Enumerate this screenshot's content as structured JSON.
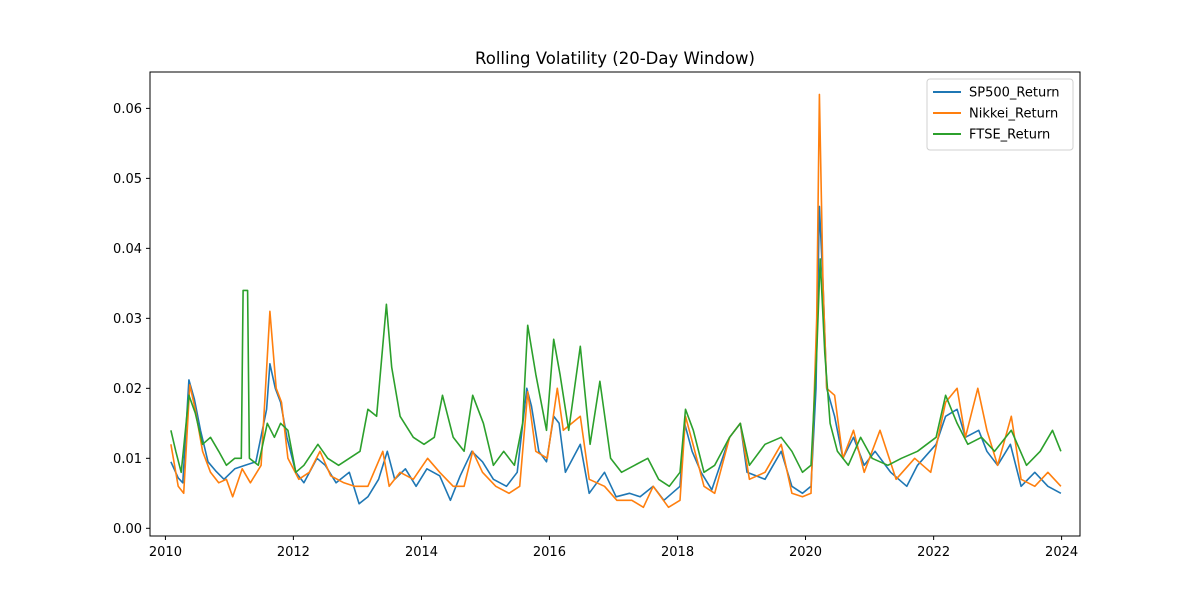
{
  "chart_data": {
    "type": "line",
    "title": "Rolling Volatility (20-Day Window)",
    "xlabel": "",
    "ylabel": "",
    "xlim": [
      "2009-10-05",
      "2024-04-15"
    ],
    "ylim": [
      -0.0011,
      0.0652
    ],
    "x_ticks": [
      "2010",
      "2012",
      "2014",
      "2016",
      "2018",
      "2020",
      "2022",
      "2024"
    ],
    "y_ticks": [
      "0.00",
      "0.01",
      "0.02",
      "0.03",
      "0.04",
      "0.05",
      "0.06"
    ],
    "grid": false,
    "legend_position": "top-right",
    "series": [
      {
        "name": "SP500_Return",
        "color": "#1f77b4",
        "points": [
          [
            "2010-02-01",
            0.0095
          ],
          [
            "2010-03-15",
            0.0072
          ],
          [
            "2010-04-10",
            0.0065
          ],
          [
            "2010-05-15",
            0.0212
          ],
          [
            "2010-06-15",
            0.0185
          ],
          [
            "2010-07-20",
            0.014
          ],
          [
            "2010-09-01",
            0.0095
          ],
          [
            "2010-10-15",
            0.0082
          ],
          [
            "2010-12-01",
            0.007
          ],
          [
            "2011-02-01",
            0.0085
          ],
          [
            "2011-04-01",
            0.009
          ],
          [
            "2011-06-01",
            0.0095
          ],
          [
            "2011-08-01",
            0.017
          ],
          [
            "2011-08-20",
            0.0235
          ],
          [
            "2011-09-20",
            0.02
          ],
          [
            "2011-10-20",
            0.018
          ],
          [
            "2011-11-25",
            0.013
          ],
          [
            "2012-01-15",
            0.008
          ],
          [
            "2012-03-01",
            0.0065
          ],
          [
            "2012-05-15",
            0.01
          ],
          [
            "2012-07-01",
            0.009
          ],
          [
            "2012-09-01",
            0.0065
          ],
          [
            "2012-11-15",
            0.008
          ],
          [
            "2013-01-10",
            0.0035
          ],
          [
            "2013-03-01",
            0.0045
          ],
          [
            "2013-05-01",
            0.007
          ],
          [
            "2013-06-20",
            0.011
          ],
          [
            "2013-08-01",
            0.007
          ],
          [
            "2013-10-01",
            0.0085
          ],
          [
            "2013-12-01",
            0.006
          ],
          [
            "2014-02-01",
            0.0085
          ],
          [
            "2014-04-15",
            0.0075
          ],
          [
            "2014-06-15",
            0.004
          ],
          [
            "2014-08-10",
            0.0075
          ],
          [
            "2014-10-15",
            0.011
          ],
          [
            "2014-12-15",
            0.0095
          ],
          [
            "2015-02-15",
            0.007
          ],
          [
            "2015-05-01",
            0.006
          ],
          [
            "2015-07-01",
            0.008
          ],
          [
            "2015-08-25",
            0.02
          ],
          [
            "2015-09-20",
            0.0175
          ],
          [
            "2015-11-01",
            0.011
          ],
          [
            "2015-12-15",
            0.0095
          ],
          [
            "2016-01-25",
            0.016
          ],
          [
            "2016-02-25",
            0.015
          ],
          [
            "2016-04-01",
            0.008
          ],
          [
            "2016-06-25",
            0.012
          ],
          [
            "2016-08-15",
            0.005
          ],
          [
            "2016-11-10",
            0.008
          ],
          [
            "2017-01-15",
            0.0045
          ],
          [
            "2017-04-01",
            0.005
          ],
          [
            "2017-06-01",
            0.0045
          ],
          [
            "2017-08-15",
            0.006
          ],
          [
            "2017-10-15",
            0.004
          ],
          [
            "2018-01-15",
            0.006
          ],
          [
            "2018-02-10",
            0.015
          ],
          [
            "2018-03-25",
            0.011
          ],
          [
            "2018-05-15",
            0.008
          ],
          [
            "2018-07-15",
            0.0055
          ],
          [
            "2018-10-25",
            0.013
          ],
          [
            "2018-12-25",
            0.015
          ],
          [
            "2019-02-01",
            0.008
          ],
          [
            "2019-05-15",
            0.007
          ],
          [
            "2019-08-15",
            0.011
          ],
          [
            "2019-10-15",
            0.006
          ],
          [
            "2019-12-15",
            0.005
          ],
          [
            "2020-02-01",
            0.006
          ],
          [
            "2020-03-01",
            0.02
          ],
          [
            "2020-03-20",
            0.046
          ],
          [
            "2020-04-10",
            0.035
          ],
          [
            "2020-05-01",
            0.02
          ],
          [
            "2020-06-15",
            0.016
          ],
          [
            "2020-08-01",
            0.01
          ],
          [
            "2020-10-01",
            0.013
          ],
          [
            "2020-12-01",
            0.009
          ],
          [
            "2021-02-01",
            0.011
          ],
          [
            "2021-05-01",
            0.008
          ],
          [
            "2021-08-01",
            0.006
          ],
          [
            "2021-10-01",
            0.009
          ],
          [
            "2022-01-15",
            0.012
          ],
          [
            "2022-03-10",
            0.016
          ],
          [
            "2022-05-15",
            0.017
          ],
          [
            "2022-07-01",
            0.013
          ],
          [
            "2022-09-15",
            0.014
          ],
          [
            "2022-11-01",
            0.011
          ],
          [
            "2023-01-01",
            0.009
          ],
          [
            "2023-03-15",
            0.012
          ],
          [
            "2023-05-15",
            0.006
          ],
          [
            "2023-08-01",
            0.008
          ],
          [
            "2023-10-15",
            0.006
          ],
          [
            "2023-12-28",
            0.005
          ]
        ]
      },
      {
        "name": "Nikkei_Return",
        "color": "#ff7f0e",
        "points": [
          [
            "2010-02-01",
            0.012
          ],
          [
            "2010-03-15",
            0.006
          ],
          [
            "2010-04-15",
            0.005
          ],
          [
            "2010-05-20",
            0.0205
          ],
          [
            "2010-06-20",
            0.017
          ],
          [
            "2010-08-01",
            0.011
          ],
          [
            "2010-09-15",
            0.008
          ],
          [
            "2010-11-01",
            0.0065
          ],
          [
            "2010-12-15",
            0.007
          ],
          [
            "2011-01-20",
            0.0045
          ],
          [
            "2011-03-15",
            0.0085
          ],
          [
            "2011-05-01",
            0.0065
          ],
          [
            "2011-07-01",
            0.009
          ],
          [
            "2011-08-20",
            0.031
          ],
          [
            "2011-09-25",
            0.02
          ],
          [
            "2011-10-25",
            0.018
          ],
          [
            "2011-12-01",
            0.01
          ],
          [
            "2012-02-01",
            0.007
          ],
          [
            "2012-04-01",
            0.008
          ],
          [
            "2012-06-01",
            0.011
          ],
          [
            "2012-08-01",
            0.0075
          ],
          [
            "2012-10-15",
            0.0065
          ],
          [
            "2012-12-15",
            0.006
          ],
          [
            "2013-03-01",
            0.006
          ],
          [
            "2013-05-25",
            0.011
          ],
          [
            "2013-07-01",
            0.006
          ],
          [
            "2013-09-01",
            0.008
          ],
          [
            "2013-11-15",
            0.007
          ],
          [
            "2014-02-05",
            0.01
          ],
          [
            "2014-04-15",
            0.008
          ],
          [
            "2014-07-01",
            0.006
          ],
          [
            "2014-09-01",
            0.006
          ],
          [
            "2014-10-20",
            0.011
          ],
          [
            "2014-12-15",
            0.008
          ],
          [
            "2015-03-01",
            0.006
          ],
          [
            "2015-05-15",
            0.005
          ],
          [
            "2015-07-15",
            0.006
          ],
          [
            "2015-08-30",
            0.0195
          ],
          [
            "2015-10-15",
            0.011
          ],
          [
            "2015-12-20",
            0.01
          ],
          [
            "2016-02-15",
            0.02
          ],
          [
            "2016-03-20",
            0.014
          ],
          [
            "2016-06-25",
            0.016
          ],
          [
            "2016-08-15",
            0.007
          ],
          [
            "2016-11-10",
            0.006
          ],
          [
            "2017-01-20",
            0.004
          ],
          [
            "2017-04-15",
            0.004
          ],
          [
            "2017-06-20",
            0.003
          ],
          [
            "2017-08-15",
            0.006
          ],
          [
            "2017-11-10",
            0.003
          ],
          [
            "2018-01-15",
            0.004
          ],
          [
            "2018-02-15",
            0.016
          ],
          [
            "2018-03-30",
            0.012
          ],
          [
            "2018-06-01",
            0.006
          ],
          [
            "2018-08-01",
            0.005
          ],
          [
            "2018-10-25",
            0.013
          ],
          [
            "2018-12-25",
            0.015
          ],
          [
            "2019-02-15",
            0.007
          ],
          [
            "2019-05-15",
            0.008
          ],
          [
            "2019-08-15",
            0.012
          ],
          [
            "2019-10-15",
            0.005
          ],
          [
            "2019-12-15",
            0.0045
          ],
          [
            "2020-02-01",
            0.005
          ],
          [
            "2020-03-05",
            0.03
          ],
          [
            "2020-03-20",
            0.062
          ],
          [
            "2020-04-10",
            0.035
          ],
          [
            "2020-05-01",
            0.02
          ],
          [
            "2020-06-15",
            0.019
          ],
          [
            "2020-08-01",
            0.01
          ],
          [
            "2020-10-01",
            0.014
          ],
          [
            "2020-12-01",
            0.008
          ],
          [
            "2021-03-01",
            0.014
          ],
          [
            "2021-06-01",
            0.007
          ],
          [
            "2021-09-15",
            0.01
          ],
          [
            "2021-12-15",
            0.008
          ],
          [
            "2022-03-10",
            0.018
          ],
          [
            "2022-05-15",
            0.02
          ],
          [
            "2022-07-01",
            0.013
          ],
          [
            "2022-09-10",
            0.02
          ],
          [
            "2022-11-01",
            0.014
          ],
          [
            "2023-01-01",
            0.009
          ],
          [
            "2023-03-20",
            0.016
          ],
          [
            "2023-05-15",
            0.007
          ],
          [
            "2023-08-01",
            0.006
          ],
          [
            "2023-10-15",
            0.008
          ],
          [
            "2023-12-28",
            0.006
          ]
        ]
      },
      {
        "name": "FTSE_Return",
        "color": "#2ca02c",
        "points": [
          [
            "2010-02-01",
            0.014
          ],
          [
            "2010-03-01",
            0.011
          ],
          [
            "2010-04-01",
            0.008
          ],
          [
            "2010-05-15",
            0.019
          ],
          [
            "2010-06-20",
            0.0165
          ],
          [
            "2010-08-01",
            0.012
          ],
          [
            "2010-09-15",
            0.013
          ],
          [
            "2010-11-01",
            0.011
          ],
          [
            "2010-12-15",
            0.009
          ],
          [
            "2011-02-01",
            0.01
          ],
          [
            "2011-03-10",
            0.01
          ],
          [
            "2011-03-20",
            0.034
          ],
          [
            "2011-04-15",
            0.034
          ],
          [
            "2011-04-25",
            0.01
          ],
          [
            "2011-06-15",
            0.009
          ],
          [
            "2011-08-05",
            0.015
          ],
          [
            "2011-09-15",
            0.013
          ],
          [
            "2011-10-20",
            0.015
          ],
          [
            "2011-12-01",
            0.014
          ],
          [
            "2012-01-15",
            0.008
          ],
          [
            "2012-03-01",
            0.009
          ],
          [
            "2012-05-20",
            0.012
          ],
          [
            "2012-07-15",
            0.01
          ],
          [
            "2012-09-15",
            0.009
          ],
          [
            "2012-11-15",
            0.01
          ],
          [
            "2013-01-15",
            0.011
          ],
          [
            "2013-03-01",
            0.017
          ],
          [
            "2013-04-20",
            0.016
          ],
          [
            "2013-06-15",
            0.032
          ],
          [
            "2013-07-15",
            0.023
          ],
          [
            "2013-09-01",
            0.016
          ],
          [
            "2013-11-15",
            0.013
          ],
          [
            "2014-01-15",
            0.012
          ],
          [
            "2014-03-15",
            0.013
          ],
          [
            "2014-05-01",
            0.019
          ],
          [
            "2014-07-01",
            0.013
          ],
          [
            "2014-09-01",
            0.011
          ],
          [
            "2014-10-20",
            0.019
          ],
          [
            "2014-12-20",
            0.015
          ],
          [
            "2015-02-15",
            0.009
          ],
          [
            "2015-04-15",
            0.011
          ],
          [
            "2015-06-15",
            0.009
          ],
          [
            "2015-08-01",
            0.015
          ],
          [
            "2015-08-30",
            0.029
          ],
          [
            "2015-10-15",
            0.022
          ],
          [
            "2015-12-15",
            0.014
          ],
          [
            "2016-01-25",
            0.027
          ],
          [
            "2016-03-01",
            0.022
          ],
          [
            "2016-04-20",
            0.014
          ],
          [
            "2016-06-25",
            0.026
          ],
          [
            "2016-08-20",
            0.012
          ],
          [
            "2016-10-15",
            0.021
          ],
          [
            "2016-12-15",
            0.01
          ],
          [
            "2017-02-15",
            0.008
          ],
          [
            "2017-05-01",
            0.009
          ],
          [
            "2017-07-15",
            0.01
          ],
          [
            "2017-09-15",
            0.007
          ],
          [
            "2017-11-15",
            0.006
          ],
          [
            "2018-01-15",
            0.008
          ],
          [
            "2018-02-15",
            0.017
          ],
          [
            "2018-04-01",
            0.014
          ],
          [
            "2018-06-01",
            0.008
          ],
          [
            "2018-08-01",
            0.009
          ],
          [
            "2018-10-25",
            0.013
          ],
          [
            "2018-12-25",
            0.015
          ],
          [
            "2019-02-15",
            0.009
          ],
          [
            "2019-05-15",
            0.012
          ],
          [
            "2019-08-15",
            0.013
          ],
          [
            "2019-10-15",
            0.011
          ],
          [
            "2019-12-15",
            0.008
          ],
          [
            "2020-02-01",
            0.009
          ],
          [
            "2020-03-05",
            0.025
          ],
          [
            "2020-03-25",
            0.0385
          ],
          [
            "2020-04-20",
            0.025
          ],
          [
            "2020-05-20",
            0.015
          ],
          [
            "2020-07-01",
            0.011
          ],
          [
            "2020-09-01",
            0.009
          ],
          [
            "2020-11-10",
            0.013
          ],
          [
            "2021-01-15",
            0.01
          ],
          [
            "2021-04-15",
            0.009
          ],
          [
            "2021-07-01",
            0.01
          ],
          [
            "2021-10-01",
            0.011
          ],
          [
            "2022-01-15",
            0.013
          ],
          [
            "2022-03-10",
            0.019
          ],
          [
            "2022-05-15",
            0.015
          ],
          [
            "2022-07-15",
            0.012
          ],
          [
            "2022-10-01",
            0.013
          ],
          [
            "2022-12-15",
            0.011
          ],
          [
            "2023-03-20",
            0.014
          ],
          [
            "2023-06-15",
            0.009
          ],
          [
            "2023-09-01",
            0.011
          ],
          [
            "2023-11-10",
            0.014
          ],
          [
            "2023-12-28",
            0.011
          ]
        ]
      }
    ]
  }
}
